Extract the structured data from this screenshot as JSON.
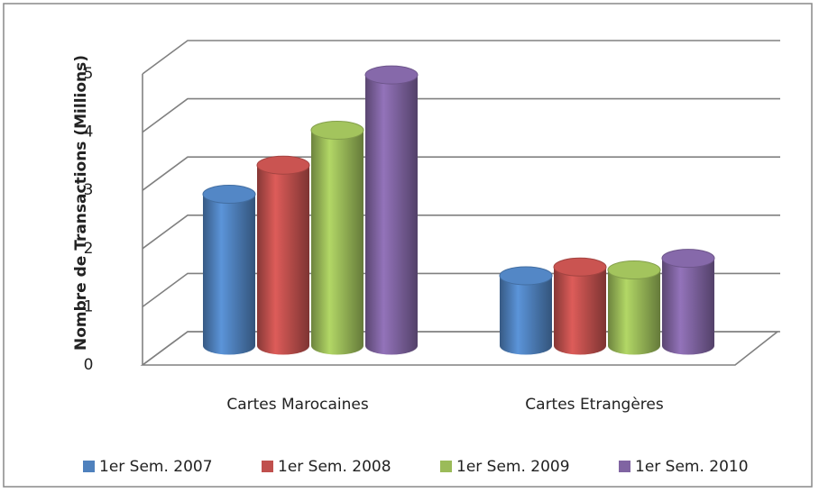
{
  "chart_data": {
    "type": "bar3d-cylinder",
    "y_label": "Nombre de Transactions (Millions)",
    "categories": [
      "Cartes Marocaines",
      "Cartes Etrangères"
    ],
    "series": [
      {
        "name": "1er Sem. 2007",
        "color": "#4f81bd",
        "values": [
          2.6,
          1.2
        ]
      },
      {
        "name": "1er Sem. 2008",
        "color": "#c0504d",
        "values": [
          3.1,
          1.35
        ]
      },
      {
        "name": "1er Sem. 2009",
        "color": "#9bbb59",
        "values": [
          3.7,
          1.3
        ]
      },
      {
        "name": "1er Sem. 2010",
        "color": "#8064a2",
        "values": [
          4.65,
          1.5
        ]
      }
    ],
    "ylim": [
      0,
      5
    ],
    "yticks": [
      0,
      1,
      2,
      3,
      4,
      5
    ],
    "grid": true,
    "legend": "bottom"
  }
}
